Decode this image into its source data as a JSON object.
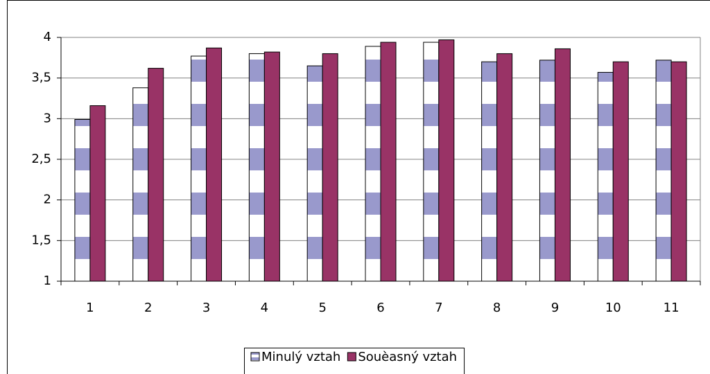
{
  "chart_data": {
    "type": "bar",
    "categories": [
      "1",
      "2",
      "3",
      "4",
      "5",
      "6",
      "7",
      "8",
      "9",
      "10",
      "11"
    ],
    "series": [
      {
        "name": "Minulý vztah",
        "color": "#9999cc",
        "pattern": "stripes",
        "values": [
          2.99,
          3.38,
          3.77,
          3.8,
          3.65,
          3.89,
          3.94,
          3.7,
          3.72,
          3.57,
          3.72
        ]
      },
      {
        "name": "Souèasný vztah",
        "color": "#993366",
        "values": [
          3.16,
          3.62,
          3.87,
          3.82,
          3.8,
          3.94,
          3.97,
          3.8,
          3.86,
          3.7,
          3.7
        ]
      }
    ],
    "ylim": [
      1,
      4
    ],
    "yticks": [
      1,
      {
        "value": 1.5,
        "label": "1,5"
      },
      2,
      {
        "value": 2.5,
        "label": "2,5"
      },
      3,
      {
        "value": 3.5,
        "label": "3,5"
      },
      4
    ],
    "grid": true,
    "legend": "bottom"
  }
}
